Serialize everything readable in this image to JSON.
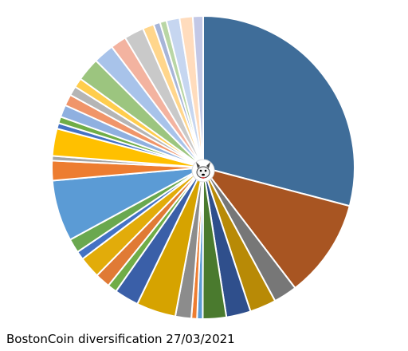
{
  "chart_data": {
    "type": "pie",
    "title": "BostonCoin diversification 27/03/2021",
    "values": [
      29,
      10.5,
      2.5,
      2.8,
      2.6,
      2.5,
      0.6,
      0.6,
      1.7,
      4.2,
      2.6,
      1,
      1.6,
      2.3,
      0.9,
      1.5,
      6.5,
      2.1,
      0.5,
      2.9,
      0.6,
      0.7,
      1.3,
      1.2,
      1,
      1,
      2.5,
      2.2,
      1.7,
      2.1,
      1.2,
      0.7,
      0.7,
      1.4,
      1.4,
      1.1
    ],
    "colors": [
      "#3f6d99",
      "#a85522",
      "#777777",
      "#b88a06",
      "#2f4f8c",
      "#4a7a2e",
      "#5b9bd5",
      "#ed7d31",
      "#8c8c8c",
      "#d6a300",
      "#3a5fa8",
      "#70ad47",
      "#e07a35",
      "#e2ac0a",
      "#4472c4",
      "#6aa84f",
      "#5b9bd5",
      "#ed7d31",
      "#a5a5a5",
      "#ffc000",
      "#4472c4",
      "#70ad47",
      "#8fb0e0",
      "#f0956a",
      "#b5b5b5",
      "#ffcd4d",
      "#9cc57f",
      "#a8c3ea",
      "#f3b3a0",
      "#c9c9c9",
      "#ffd68c",
      "#a7b5d8",
      "#b9d6a5",
      "#c6d6f0",
      "#ffdcbd",
      "#c3c8e6"
    ]
  }
}
